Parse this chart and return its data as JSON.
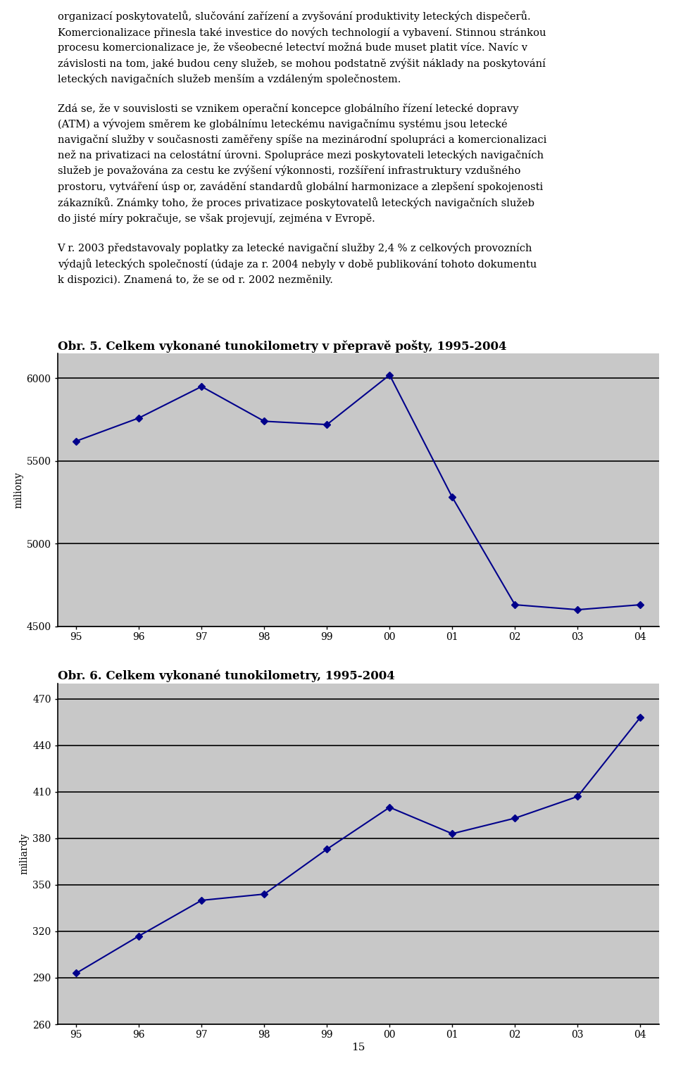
{
  "full_text": "organizací poskytovatelů, slučování zařízení a zvyšování produktivity leteckých dispečerů.\nKomercionalizace přinesla také investice do nových technologií a vybavení. Stinnou stránkou\nprocesu komercionalizace je, že všeobecné letectví možná bude muset platit více. Navíc v\nzávislosti na tom, jaké budou ceny služeb, se mohou podstatně zvýšit náklady na poskytování\nleteckých navigačních služeb menším a vzdáleným společnostem.\n\nZdá se, že v souvislosti se vznikem operační koncepce globálního řízení letecké dopravy\n(ATM) a vývojem směrem ke globálnímu leteckému navigačnímu systému jsou letecké\nnavigační služby v současnosti zaměřeny spíše na mezinárodní spolupráci a komercionalizaci\nnež na privatizaci na celostátní úrovni. Spolupráce mezi poskytovateli leteckých navigačních\nslužeb je považována za cestu ke zvýšení výkonnosti, rozšíření infrastruktury vzdušného\nprostoru, vytváření úsp or, zavádění standardů globální harmonizace a zlepšení spokojenosti\nzákazníků. Známky toho, že proces privatizace poskytovatelů leteckých navigačních služeb\ndo jisté míry pokračuje, se však projevují, zejména v Evropě.\n\nV r. 2003 představovaly poplatky za letecké navigační služby 2,4 % z celkových provozních\nvýdajů leteckých společností (údaje za r. 2004 nebyly v době publikování tohoto dokumentu\nk dispozici). Znamená to, že se od r. 2002 nezměnily.",
  "chart1_title": "Obr. 5. Celkem vykonané tunokilometry v přepravě pošty, 1995-2004",
  "chart1_xlabel": [
    "95",
    "96",
    "97",
    "98",
    "99",
    "00",
    "01",
    "02",
    "03",
    "04"
  ],
  "chart1_ylabel": "miliony",
  "chart1_ylim": [
    4500,
    6150
  ],
  "chart1_yticks": [
    4500,
    5000,
    5500,
    6000
  ],
  "chart1_values": [
    5620,
    5760,
    5950,
    5740,
    5720,
    6020,
    5280,
    4630,
    4600,
    4630
  ],
  "chart2_title": "Obr. 6. Celkem vykonané tunokilometry, 1995-2004",
  "chart2_xlabel": [
    "95",
    "96",
    "97",
    "98",
    "99",
    "00",
    "01",
    "02",
    "03",
    "04"
  ],
  "chart2_ylabel": "miliardy",
  "chart2_ylim": [
    260,
    480
  ],
  "chart2_yticks": [
    260,
    290,
    320,
    350,
    380,
    410,
    440,
    470
  ],
  "chart2_values": [
    293,
    317,
    340,
    344,
    373,
    400,
    383,
    393,
    407,
    458
  ],
  "line_color": "#00008B",
  "marker_color": "#00008B",
  "chart_bg": "#C8C8C8",
  "page_number": "15",
  "body_fontsize": 10.5,
  "title_fontsize": 12,
  "axis_fontsize": 10
}
